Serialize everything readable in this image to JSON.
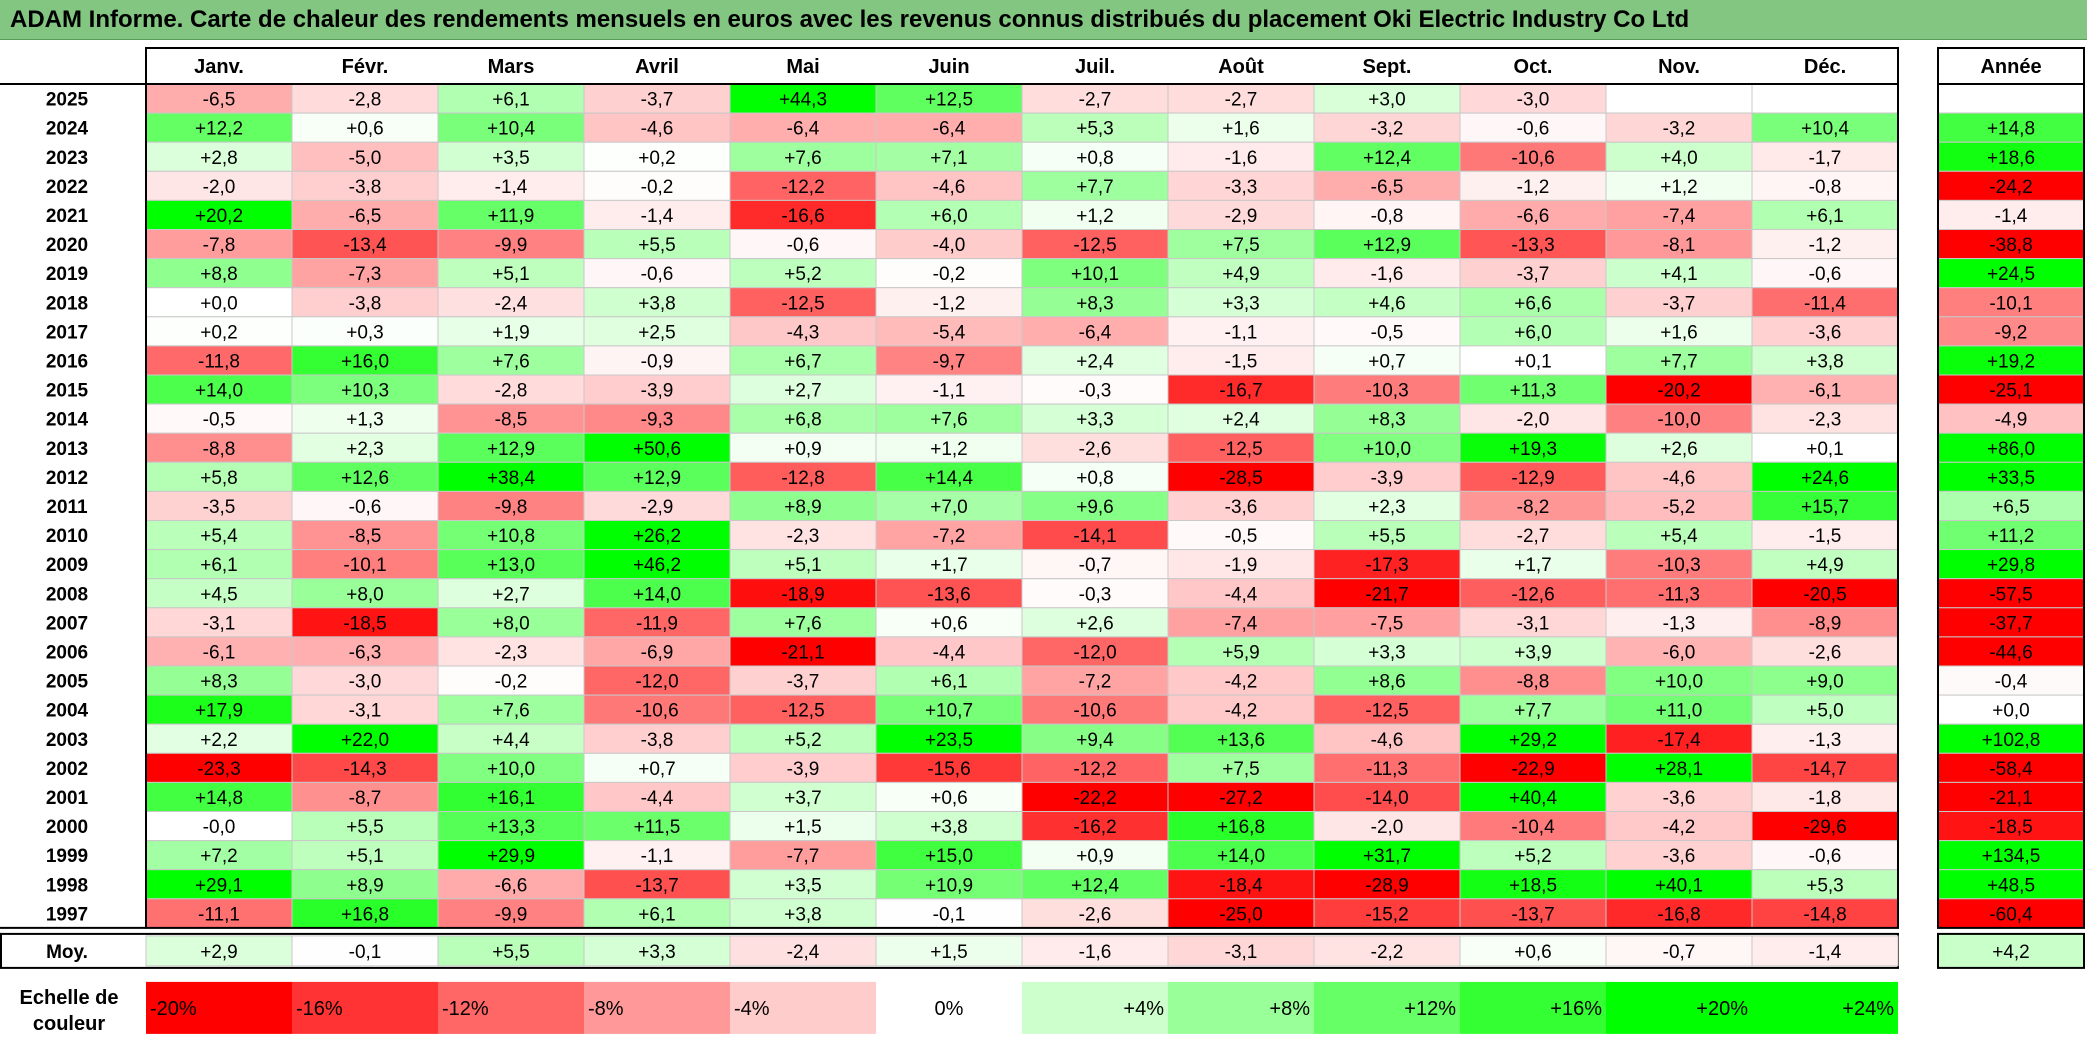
{
  "title": "ADAM Informe. Carte de chaleur des rendements mensuels en euros avec les revenus connus distribués du placement Oki Electric Industry Co Ltd",
  "chart_data": {
    "type": "heatmap",
    "title": "ADAM Informe. Carte de chaleur des rendements mensuels en euros avec les revenus connus distribués du placement Oki Electric Industry Co Ltd",
    "months": [
      "Janv.",
      "Févr.",
      "Mars",
      "Avril",
      "Mai",
      "Juin",
      "Juil.",
      "Août",
      "Sept.",
      "Oct.",
      "Nov.",
      "Déc."
    ],
    "annual_header": "Année",
    "avg_label": "Moy.",
    "rows": [
      {
        "year": "2025",
        "values": [
          "-6,5",
          "-2,8",
          "+6,1",
          "-3,7",
          "+44,3",
          "+12,5",
          "-2,7",
          "-2,7",
          "+3,0",
          "-3,0",
          "",
          ""
        ],
        "annual": ""
      },
      {
        "year": "2024",
        "values": [
          "+12,2",
          "+0,6",
          "+10,4",
          "-4,6",
          "-6,4",
          "-6,4",
          "+5,3",
          "+1,6",
          "-3,2",
          "-0,6",
          "-3,2",
          "+10,4"
        ],
        "annual": "+14,8"
      },
      {
        "year": "2023",
        "values": [
          "+2,8",
          "-5,0",
          "+3,5",
          "+0,2",
          "+7,6",
          "+7,1",
          "+0,8",
          "-1,6",
          "+12,4",
          "-10,6",
          "+4,0",
          "-1,7"
        ],
        "annual": "+18,6"
      },
      {
        "year": "2022",
        "values": [
          "-2,0",
          "-3,8",
          "-1,4",
          "-0,2",
          "-12,2",
          "-4,6",
          "+7,7",
          "-3,3",
          "-6,5",
          "-1,2",
          "+1,2",
          "-0,8"
        ],
        "annual": "-24,2"
      },
      {
        "year": "2021",
        "values": [
          "+20,2",
          "-6,5",
          "+11,9",
          "-1,4",
          "-16,6",
          "+6,0",
          "+1,2",
          "-2,9",
          "-0,8",
          "-6,6",
          "-7,4",
          "+6,1"
        ],
        "annual": "-1,4"
      },
      {
        "year": "2020",
        "values": [
          "-7,8",
          "-13,4",
          "-9,9",
          "+5,5",
          "-0,6",
          "-4,0",
          "-12,5",
          "+7,5",
          "+12,9",
          "-13,3",
          "-8,1",
          "-1,2"
        ],
        "annual": "-38,8"
      },
      {
        "year": "2019",
        "values": [
          "+8,8",
          "-7,3",
          "+5,1",
          "-0,6",
          "+5,2",
          "-0,2",
          "+10,1",
          "+4,9",
          "-1,6",
          "-3,7",
          "+4,1",
          "-0,6"
        ],
        "annual": "+24,5"
      },
      {
        "year": "2018",
        "values": [
          "+0,0",
          "-3,8",
          "-2,4",
          "+3,8",
          "-12,5",
          "-1,2",
          "+8,3",
          "+3,3",
          "+4,6",
          "+6,6",
          "-3,7",
          "-11,4"
        ],
        "annual": "-10,1"
      },
      {
        "year": "2017",
        "values": [
          "+0,2",
          "+0,3",
          "+1,9",
          "+2,5",
          "-4,3",
          "-5,4",
          "-6,4",
          "-1,1",
          "-0,5",
          "+6,0",
          "+1,6",
          "-3,6"
        ],
        "annual": "-9,2"
      },
      {
        "year": "2016",
        "values": [
          "-11,8",
          "+16,0",
          "+7,6",
          "-0,9",
          "+6,7",
          "-9,7",
          "+2,4",
          "-1,5",
          "+0,7",
          "+0,1",
          "+7,7",
          "+3,8"
        ],
        "annual": "+19,2"
      },
      {
        "year": "2015",
        "values": [
          "+14,0",
          "+10,3",
          "-2,8",
          "-3,9",
          "+2,7",
          "-1,1",
          "-0,3",
          "-16,7",
          "-10,3",
          "+11,3",
          "-20,2",
          "-6,1"
        ],
        "annual": "-25,1"
      },
      {
        "year": "2014",
        "values": [
          "-0,5",
          "+1,3",
          "-8,5",
          "-9,3",
          "+6,8",
          "+7,6",
          "+3,3",
          "+2,4",
          "+8,3",
          "-2,0",
          "-10,0",
          "-2,3"
        ],
        "annual": "-4,9"
      },
      {
        "year": "2013",
        "values": [
          "-8,8",
          "+2,3",
          "+12,9",
          "+50,6",
          "+0,9",
          "+1,2",
          "-2,6",
          "-12,5",
          "+10,0",
          "+19,3",
          "+2,6",
          "+0,1"
        ],
        "annual": "+86,0"
      },
      {
        "year": "2012",
        "values": [
          "+5,8",
          "+12,6",
          "+38,4",
          "+12,9",
          "-12,8",
          "+14,4",
          "+0,8",
          "-28,5",
          "-3,9",
          "-12,9",
          "-4,6",
          "+24,6"
        ],
        "annual": "+33,5"
      },
      {
        "year": "2011",
        "values": [
          "-3,5",
          "-0,6",
          "-9,8",
          "-2,9",
          "+8,9",
          "+7,0",
          "+9,6",
          "-3,6",
          "+2,3",
          "-8,2",
          "-5,2",
          "+15,7"
        ],
        "annual": "+6,5"
      },
      {
        "year": "2010",
        "values": [
          "+5,4",
          "-8,5",
          "+10,8",
          "+26,2",
          "-2,3",
          "-7,2",
          "-14,1",
          "-0,5",
          "+5,5",
          "-2,7",
          "+5,4",
          "-1,5"
        ],
        "annual": "+11,2"
      },
      {
        "year": "2009",
        "values": [
          "+6,1",
          "-10,1",
          "+13,0",
          "+46,2",
          "+5,1",
          "+1,7",
          "-0,7",
          "-1,9",
          "-17,3",
          "+1,7",
          "-10,3",
          "+4,9"
        ],
        "annual": "+29,8"
      },
      {
        "year": "2008",
        "values": [
          "+4,5",
          "+8,0",
          "+2,7",
          "+14,0",
          "-18,9",
          "-13,6",
          "-0,3",
          "-4,4",
          "-21,7",
          "-12,6",
          "-11,3",
          "-20,5"
        ],
        "annual": "-57,5"
      },
      {
        "year": "2007",
        "values": [
          "-3,1",
          "-18,5",
          "+8,0",
          "-11,9",
          "+7,6",
          "+0,6",
          "+2,6",
          "-7,4",
          "-7,5",
          "-3,1",
          "-1,3",
          "-8,9"
        ],
        "annual": "-37,7"
      },
      {
        "year": "2006",
        "values": [
          "-6,1",
          "-6,3",
          "-2,3",
          "-6,9",
          "-21,1",
          "-4,4",
          "-12,0",
          "+5,9",
          "+3,3",
          "+3,9",
          "-6,0",
          "-2,6"
        ],
        "annual": "-44,6"
      },
      {
        "year": "2005",
        "values": [
          "+8,3",
          "-3,0",
          "-0,2",
          "-12,0",
          "-3,7",
          "+6,1",
          "-7,2",
          "-4,2",
          "+8,6",
          "-8,8",
          "+10,0",
          "+9,0"
        ],
        "annual": "-0,4"
      },
      {
        "year": "2004",
        "values": [
          "+17,9",
          "-3,1",
          "+7,6",
          "-10,6",
          "-12,5",
          "+10,7",
          "-10,6",
          "-4,2",
          "-12,5",
          "+7,7",
          "+11,0",
          "+5,0"
        ],
        "annual": "+0,0"
      },
      {
        "year": "2003",
        "values": [
          "+2,2",
          "+22,0",
          "+4,4",
          "-3,8",
          "+5,2",
          "+23,5",
          "+9,4",
          "+13,6",
          "-4,6",
          "+29,2",
          "-17,4",
          "-1,3"
        ],
        "annual": "+102,8"
      },
      {
        "year": "2002",
        "values": [
          "-23,3",
          "-14,3",
          "+10,0",
          "+0,7",
          "-3,9",
          "-15,6",
          "-12,2",
          "+7,5",
          "-11,3",
          "-22,9",
          "+28,1",
          "-14,7"
        ],
        "annual": "-58,4"
      },
      {
        "year": "2001",
        "values": [
          "+14,8",
          "-8,7",
          "+16,1",
          "-4,4",
          "+3,7",
          "+0,6",
          "-22,2",
          "-27,2",
          "-14,0",
          "+40,4",
          "-3,6",
          "-1,8"
        ],
        "annual": "-21,1"
      },
      {
        "year": "2000",
        "values": [
          "-0,0",
          "+5,5",
          "+13,3",
          "+11,5",
          "+1,5",
          "+3,8",
          "-16,2",
          "+16,8",
          "-2,0",
          "-10,4",
          "-4,2",
          "-29,6"
        ],
        "annual": "-18,5"
      },
      {
        "year": "1999",
        "values": [
          "+7,2",
          "+5,1",
          "+29,9",
          "-1,1",
          "-7,7",
          "+15,0",
          "+0,9",
          "+14,0",
          "+31,7",
          "+5,2",
          "-3,6",
          "-0,6"
        ],
        "annual": "+134,5"
      },
      {
        "year": "1998",
        "values": [
          "+29,1",
          "+8,9",
          "-6,6",
          "-13,7",
          "+3,5",
          "+10,9",
          "+12,4",
          "-18,4",
          "-28,9",
          "+18,5",
          "+40,1",
          "+5,3"
        ],
        "annual": "+48,5"
      },
      {
        "year": "1997",
        "values": [
          "-11,1",
          "+16,8",
          "-9,9",
          "+6,1",
          "+3,8",
          "-0,1",
          "-2,6",
          "-25,0",
          "-15,2",
          "-13,7",
          "-16,8",
          "-14,8"
        ],
        "annual": "-60,4"
      }
    ],
    "averages": [
      "+2,9",
      "-0,1",
      "+5,5",
      "+3,3",
      "-2,4",
      "+1,5",
      "-1,6",
      "-3,1",
      "-2,2",
      "+0,6",
      "-0,7",
      "-1,4"
    ],
    "annual_average": "+4,2",
    "scale_label": [
      "Echelle de",
      "couleur"
    ],
    "scale": [
      {
        "label": "-20%",
        "value": -20
      },
      {
        "label": "-16%",
        "value": -16
      },
      {
        "label": "-12%",
        "value": -12
      },
      {
        "label": "-8%",
        "value": -8
      },
      {
        "label": "-4%",
        "value": -4
      },
      {
        "label": "0%",
        "value": 0
      },
      {
        "label": "+4%",
        "value": 4
      },
      {
        "label": "+8%",
        "value": 8
      },
      {
        "label": "+12%",
        "value": 12
      },
      {
        "label": "+16%",
        "value": 16
      },
      {
        "label": "+20%",
        "value": 20
      },
      {
        "label": "+24%",
        "value": 24
      }
    ],
    "colors": {
      "title_bg": "#82c682",
      "neg_max": "#ff0000",
      "pos_max": "#00ff00",
      "neutral": "#ffffff"
    }
  }
}
